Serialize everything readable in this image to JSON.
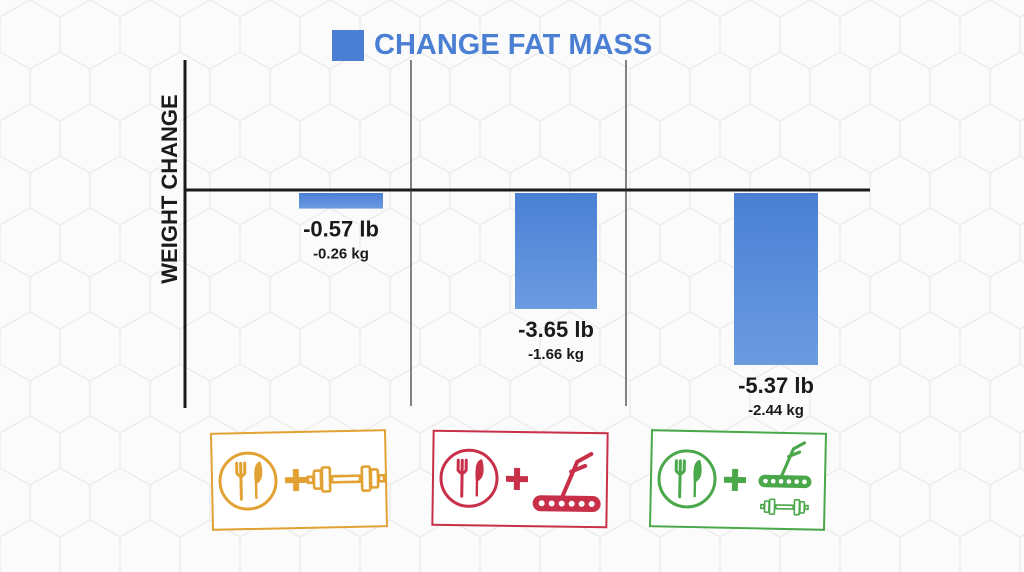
{
  "chart_data": {
    "type": "bar",
    "title": "",
    "xlabel": "",
    "ylabel": "WEIGHT CHANGE",
    "legend": {
      "placement": "top",
      "entries": [
        "CHANGE FAT MASS"
      ]
    },
    "series": [
      {
        "name": "CHANGE FAT MASS",
        "values": [
          -0.57,
          -3.65,
          -5.37
        ],
        "labels": [
          "-0.57 lb",
          "-3.65 lb",
          "-5.37 lb"
        ],
        "sublabels": [
          "-0.26 kg",
          "-1.66 kg",
          "-2.44 kg"
        ]
      }
    ],
    "categories": [
      "diet + weights",
      "diet + cardio",
      "diet + cardio + weights"
    ],
    "ylim": [
      -7.0,
      2.4
    ],
    "grid": false,
    "colors": {
      "bar": "#4a7fd4",
      "bar_light": "#6b9be0",
      "legend_text": "#4a7fd4",
      "axis": "#1a1a1a"
    },
    "category_icons": [
      {
        "frame_color": "#e2a233",
        "icons": [
          "fork-knife-icon",
          "plus-icon",
          "dumbbell-icon"
        ]
      },
      {
        "frame_color": "#c8304a",
        "icons": [
          "fork-knife-icon",
          "plus-icon",
          "treadmill-icon"
        ]
      },
      {
        "frame_color": "#4aa84a",
        "icons": [
          "fork-knife-icon",
          "plus-icon",
          "treadmill-icon",
          "dumbbell-icon"
        ]
      }
    ]
  }
}
